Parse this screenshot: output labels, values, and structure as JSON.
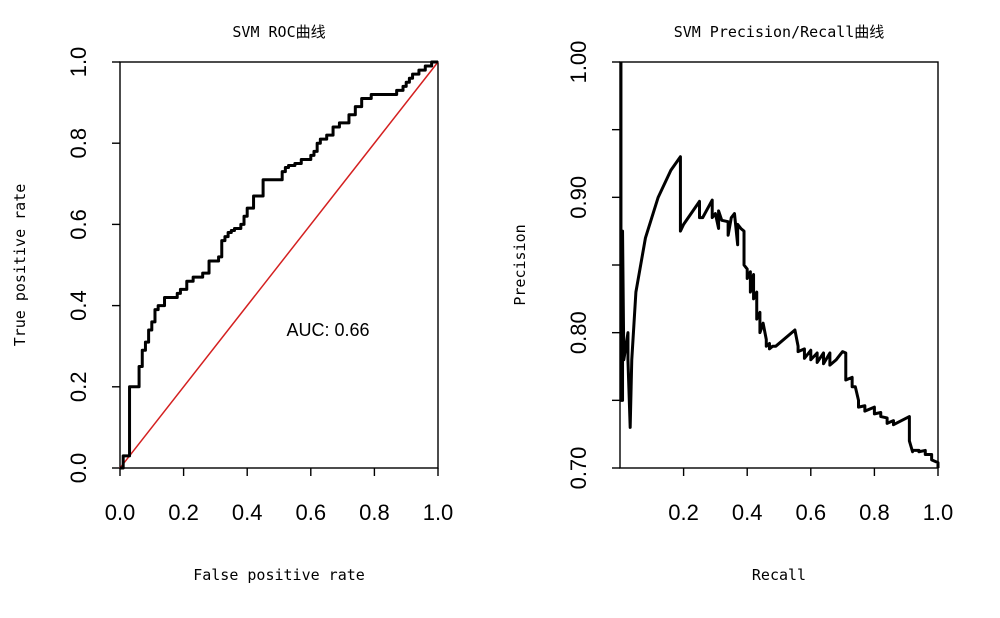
{
  "chart_data": [
    {
      "type": "line",
      "title": "SVM ROC曲线",
      "xlabel": "False positive rate",
      "ylabel": "True positive rate",
      "xlim": [
        0,
        1
      ],
      "ylim": [
        0,
        1
      ],
      "x_ticks": [
        "0.0",
        "0.2",
        "0.4",
        "0.6",
        "0.8",
        "1.0"
      ],
      "y_ticks": [
        "0.0",
        "0.2",
        "0.4",
        "0.6",
        "0.8",
        "1.0"
      ],
      "annotation": "AUC: 0.66",
      "grid": false,
      "reference_line": {
        "from": [
          0,
          0
        ],
        "to": [
          1,
          1
        ],
        "color": "#d42020"
      },
      "series": [
        {
          "x": [
            0.0,
            0.01,
            0.01,
            0.03,
            0.03,
            0.06,
            0.06,
            0.07,
            0.07,
            0.08,
            0.08,
            0.09,
            0.09,
            0.1,
            0.1,
            0.11,
            0.11,
            0.12,
            0.12,
            0.14,
            0.14,
            0.18,
            0.18,
            0.19,
            0.19,
            0.21,
            0.21,
            0.23,
            0.23,
            0.26,
            0.26,
            0.28,
            0.28,
            0.31,
            0.31,
            0.32,
            0.32,
            0.33,
            0.33,
            0.34,
            0.34,
            0.35,
            0.35,
            0.36,
            0.36,
            0.38,
            0.38,
            0.39,
            0.39,
            0.4,
            0.4,
            0.42,
            0.42,
            0.45,
            0.45,
            0.51,
            0.51,
            0.52,
            0.52,
            0.53,
            0.53,
            0.55,
            0.55,
            0.57,
            0.57,
            0.6,
            0.6,
            0.61,
            0.61,
            0.62,
            0.62,
            0.63,
            0.63,
            0.65,
            0.65,
            0.67,
            0.67,
            0.69,
            0.69,
            0.72,
            0.72,
            0.74,
            0.74,
            0.76,
            0.76,
            0.79,
            0.79,
            0.84,
            0.84,
            0.87,
            0.87,
            0.89,
            0.89,
            0.9,
            0.9,
            0.91,
            0.91,
            0.92,
            0.92,
            0.94,
            0.94,
            0.96,
            0.96,
            0.98,
            0.98,
            1.0
          ],
          "y": [
            0.0,
            0.0,
            0.03,
            0.03,
            0.2,
            0.2,
            0.25,
            0.25,
            0.29,
            0.29,
            0.31,
            0.31,
            0.34,
            0.34,
            0.36,
            0.36,
            0.39,
            0.39,
            0.4,
            0.4,
            0.42,
            0.42,
            0.43,
            0.43,
            0.44,
            0.44,
            0.46,
            0.46,
            0.47,
            0.47,
            0.48,
            0.48,
            0.51,
            0.51,
            0.52,
            0.52,
            0.56,
            0.56,
            0.57,
            0.57,
            0.58,
            0.58,
            0.585,
            0.585,
            0.59,
            0.59,
            0.6,
            0.6,
            0.62,
            0.62,
            0.64,
            0.64,
            0.67,
            0.67,
            0.71,
            0.71,
            0.73,
            0.73,
            0.74,
            0.74,
            0.745,
            0.745,
            0.75,
            0.75,
            0.76,
            0.76,
            0.77,
            0.77,
            0.78,
            0.78,
            0.8,
            0.8,
            0.81,
            0.81,
            0.82,
            0.82,
            0.84,
            0.84,
            0.85,
            0.85,
            0.87,
            0.87,
            0.89,
            0.89,
            0.91,
            0.91,
            0.92,
            0.92,
            0.92,
            0.92,
            0.93,
            0.93,
            0.94,
            0.94,
            0.95,
            0.95,
            0.96,
            0.96,
            0.97,
            0.97,
            0.98,
            0.98,
            0.99,
            0.99,
            1.0,
            1.0
          ]
        }
      ]
    },
    {
      "type": "line",
      "title": "SVM Precision/Recall曲线",
      "xlabel": "Recall",
      "ylabel": "Precision",
      "xlim": [
        0,
        1
      ],
      "ylim": [
        0.7,
        1.0
      ],
      "x_ticks": [
        "0.2",
        "0.4",
        "0.6",
        "0.8",
        "1.0"
      ],
      "y_ticks": [
        "0.70",
        "",
        "0.80",
        "",
        "0.90",
        "",
        "1.00"
      ],
      "y_tick_values": [
        0.7,
        0.75,
        0.8,
        0.85,
        0.9,
        0.95,
        1.0
      ],
      "grid": false,
      "series": [
        {
          "x": [
            0.003,
            0.003,
            0.008,
            0.008,
            0.012,
            0.025,
            0.025,
            0.032,
            0.033,
            0.035,
            0.037,
            0.05,
            0.08,
            0.12,
            0.16,
            0.19,
            0.19,
            0.2,
            0.25,
            0.25,
            0.26,
            0.29,
            0.29,
            0.3,
            0.31,
            0.31,
            0.32,
            0.34,
            0.34,
            0.35,
            0.36,
            0.37,
            0.37,
            0.38,
            0.39,
            0.39,
            0.4,
            0.4,
            0.41,
            0.41,
            0.42,
            0.42,
            0.43,
            0.43,
            0.44,
            0.44,
            0.45,
            0.46,
            0.46,
            0.47,
            0.47,
            0.48,
            0.49,
            0.55,
            0.56,
            0.56,
            0.58,
            0.58,
            0.6,
            0.6,
            0.62,
            0.62,
            0.64,
            0.64,
            0.66,
            0.66,
            0.68,
            0.7,
            0.71,
            0.71,
            0.73,
            0.73,
            0.74,
            0.75,
            0.75,
            0.77,
            0.77,
            0.8,
            0.8,
            0.82,
            0.82,
            0.84,
            0.84,
            0.86,
            0.86,
            0.91,
            0.91,
            0.92,
            0.92,
            0.94,
            0.94,
            0.96,
            0.96,
            0.98,
            0.98,
            1.0,
            1.0
          ],
          "y": [
            1.0,
            0.75,
            0.75,
            0.875,
            0.78,
            0.8,
            0.78,
            0.73,
            0.74,
            0.76,
            0.78,
            0.83,
            0.87,
            0.9,
            0.92,
            0.93,
            0.875,
            0.88,
            0.897,
            0.885,
            0.885,
            0.898,
            0.885,
            0.888,
            0.877,
            0.89,
            0.883,
            0.882,
            0.872,
            0.885,
            0.888,
            0.865,
            0.88,
            0.877,
            0.875,
            0.85,
            0.847,
            0.84,
            0.845,
            0.83,
            0.843,
            0.825,
            0.83,
            0.81,
            0.815,
            0.8,
            0.807,
            0.795,
            0.79,
            0.792,
            0.788,
            0.79,
            0.79,
            0.802,
            0.79,
            0.786,
            0.788,
            0.781,
            0.787,
            0.78,
            0.785,
            0.778,
            0.785,
            0.777,
            0.785,
            0.776,
            0.78,
            0.786,
            0.785,
            0.765,
            0.767,
            0.76,
            0.76,
            0.75,
            0.745,
            0.746,
            0.742,
            0.745,
            0.74,
            0.741,
            0.738,
            0.737,
            0.733,
            0.735,
            0.732,
            0.738,
            0.72,
            0.712,
            0.713,
            0.713,
            0.712,
            0.713,
            0.71,
            0.71,
            0.706,
            0.704,
            0.7
          ]
        }
      ]
    }
  ]
}
